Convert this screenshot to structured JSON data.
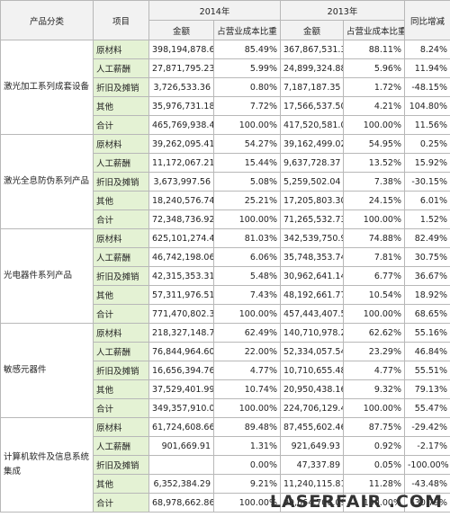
{
  "header": {
    "category": "产品分类",
    "item": "项目",
    "year1": "2014年",
    "year2": "2013年",
    "change": "同比增减",
    "amount1": "金额",
    "ratio1": "占营业成本比重",
    "amount2": "金额",
    "ratio2": "占营业成本比重"
  },
  "groups": [
    {
      "name": "激光加工系列成套设备",
      "rows": [
        [
          "原材料",
          "398,194,878.65",
          "85.49%",
          "367,867,531.31",
          "88.11%",
          "8.24%"
        ],
        [
          "人工薪酬",
          "27,871,795.23",
          "5.99%",
          "24,899,324.88",
          "5.96%",
          "11.94%"
        ],
        [
          "折旧及摊销",
          "3,726,533.36",
          "0.80%",
          "7,187,187.35",
          "1.72%",
          "-48.15%"
        ],
        [
          "其他",
          "35,976,731.18",
          "7.72%",
          "17,566,537.50",
          "4.21%",
          "104.80%"
        ],
        [
          "合计",
          "465,769,938.42",
          "100.00%",
          "417,520,581.04",
          "100.00%",
          "11.56%"
        ]
      ]
    },
    {
      "name": "激光全息防伪系列产品",
      "rows": [
        [
          "原材料",
          "39,262,095.41",
          "54.27%",
          "39,162,499.02",
          "54.95%",
          "0.25%"
        ],
        [
          "人工薪酬",
          "11,172,067.21",
          "15.44%",
          "9,637,728.37",
          "13.52%",
          "15.92%"
        ],
        [
          "折旧及摊销",
          "3,673,997.56",
          "5.08%",
          "5,259,502.04",
          "7.38%",
          "-30.15%"
        ],
        [
          "其他",
          "18,240,576.74",
          "25.21%",
          "17,205,803.30",
          "24.15%",
          "6.01%"
        ],
        [
          "合计",
          "72,348,736.92",
          "100.00%",
          "71,265,532.73",
          "100.00%",
          "1.52%"
        ]
      ]
    },
    {
      "name": "光电器件系列产品",
      "rows": [
        [
          "原材料",
          "625,101,274.45",
          "81.03%",
          "342,539,750.91",
          "74.88%",
          "82.49%"
        ],
        [
          "人工薪酬",
          "46,742,198.06",
          "6.06%",
          "35,748,353.74",
          "7.81%",
          "30.75%"
        ],
        [
          "折旧及摊销",
          "42,315,353.31",
          "5.48%",
          "30,962,641.14",
          "6.77%",
          "36.67%"
        ],
        [
          "其他",
          "57,311,976.51",
          "7.43%",
          "48,192,661.77",
          "10.54%",
          "18.92%"
        ],
        [
          "合计",
          "771,470,802.33",
          "100.00%",
          "457,443,407.56",
          "100.00%",
          "68.65%"
        ]
      ]
    },
    {
      "name": "敏感元器件",
      "rows": [
        [
          "原材料",
          "218,327,148.70",
          "62.49%",
          "140,710,978.25",
          "62.62%",
          "55.16%"
        ],
        [
          "人工薪酬",
          "76,844,964.60",
          "22.00%",
          "52,334,057.54",
          "23.29%",
          "46.84%"
        ],
        [
          "折旧及摊销",
          "16,656,394.76",
          "4.77%",
          "10,710,655.48",
          "4.77%",
          "55.51%"
        ],
        [
          "其他",
          "37,529,401.99",
          "10.74%",
          "20,950,438.16",
          "9.32%",
          "79.13%"
        ],
        [
          "合计",
          "349,357,910.05",
          "100.00%",
          "224,706,129.43",
          "100.00%",
          "55.47%"
        ]
      ]
    },
    {
      "name": "计算机软件及信息系统集成",
      "rows": [
        [
          "原材料",
          "61,724,608.66",
          "89.48%",
          "87,455,602.46",
          "87.75%",
          "-29.42%"
        ],
        [
          "人工薪酬",
          "901,669.91",
          "1.31%",
          "921,649.93",
          "0.92%",
          "-2.17%"
        ],
        [
          "折旧及摊销",
          null,
          "0.00%",
          "47,337.89",
          "0.05%",
          "-100.00%"
        ],
        [
          "其他",
          "6,352,384.29",
          "9.21%",
          "11,240,115.81",
          "11.28%",
          "-43.48%"
        ],
        [
          "合计",
          "68,978,662.86",
          "100.00%",
          "99,664,706.09",
          "100.00%",
          "-30.79%"
        ]
      ]
    }
  ],
  "watermark": "LASERFAIR .COM"
}
